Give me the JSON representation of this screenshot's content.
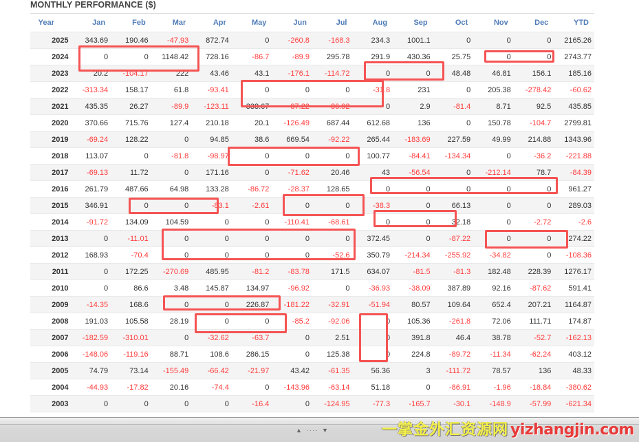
{
  "header": {
    "title": "MONTHLY PERFORMANCE ($)"
  },
  "columns": [
    "Year",
    "Jan",
    "Feb",
    "Mar",
    "Apr",
    "May",
    "Jun",
    "Jul",
    "Aug",
    "Sep",
    "Oct",
    "Nov",
    "Dec",
    "YTD"
  ],
  "rows": [
    {
      "year": "2025",
      "values": [
        "343.69",
        "190.46",
        "-47.93",
        "872.74",
        "0",
        "-260.8",
        "-168.3",
        "234.3",
        "1001.1",
        "0",
        "0",
        "0",
        "2165.26"
      ]
    },
    {
      "year": "2024",
      "values": [
        "0",
        "0",
        "1148.42",
        "728.16",
        "-86.7",
        "-89.9",
        "295.78",
        "291.9",
        "430.36",
        "25.75",
        "0",
        "0",
        "2743.77"
      ]
    },
    {
      "year": "2023",
      "values": [
        "20.2",
        "-104.17",
        "222",
        "43.46",
        "43.1",
        "-176.1",
        "-114.72",
        "0",
        "0",
        "48.48",
        "46.81",
        "156.1",
        "185.16"
      ]
    },
    {
      "year": "2022",
      "values": [
        "-313.34",
        "158.17",
        "61.8",
        "-93.41",
        "0",
        "0",
        "0",
        "-31.8",
        "231",
        "0",
        "205.38",
        "-278.42",
        "-60.62"
      ]
    },
    {
      "year": "2021",
      "values": [
        "435.35",
        "26.27",
        "-89.9",
        "-123.11",
        "338.67",
        "-87.22",
        "-86.92",
        "0",
        "2.9",
        "-81.4",
        "8.71",
        "92.5",
        "435.85"
      ]
    },
    {
      "year": "2020",
      "values": [
        "370.66",
        "715.76",
        "127.4",
        "210.18",
        "20.1",
        "-126.49",
        "687.44",
        "612.68",
        "136",
        "0",
        "150.78",
        "-104.7",
        "2799.81"
      ]
    },
    {
      "year": "2019",
      "values": [
        "-69.24",
        "128.22",
        "0",
        "94.85",
        "38.6",
        "669.54",
        "-92.22",
        "265.44",
        "-183.69",
        "227.59",
        "49.99",
        "214.88",
        "1343.96"
      ]
    },
    {
      "year": "2018",
      "values": [
        "113.07",
        "0",
        "-81.8",
        "-98.97",
        "0",
        "0",
        "0",
        "100.77",
        "-84.41",
        "-134.34",
        "0",
        "-36.2",
        "-221.88"
      ]
    },
    {
      "year": "2017",
      "values": [
        "-69.13",
        "11.72",
        "0",
        "171.16",
        "0",
        "-71.62",
        "20.46",
        "43",
        "-56.54",
        "0",
        "-212.14",
        "78.7",
        "-84.39"
      ]
    },
    {
      "year": "2016",
      "values": [
        "261.79",
        "487.66",
        "64.98",
        "133.28",
        "-86.72",
        "-28.37",
        "128.65",
        "0",
        "0",
        "0",
        "0",
        "0",
        "961.27"
      ]
    },
    {
      "year": "2015",
      "values": [
        "346.91",
        "0",
        "0",
        "-83.1",
        "-2.61",
        "0",
        "0",
        "-38.3",
        "0",
        "66.13",
        "0",
        "0",
        "289.03"
      ]
    },
    {
      "year": "2014",
      "values": [
        "-91.72",
        "134.09",
        "104.59",
        "0",
        "0",
        "-110.41",
        "-68.61",
        "0",
        "0",
        "32.18",
        "0",
        "-2.72",
        "-2.6"
      ]
    },
    {
      "year": "2013",
      "values": [
        "0",
        "-11.01",
        "0",
        "0",
        "0",
        "0",
        "0",
        "372.45",
        "0",
        "-87.22",
        "0",
        "0",
        "274.22"
      ]
    },
    {
      "year": "2012",
      "values": [
        "168.93",
        "-70.4",
        "0",
        "0",
        "0",
        "0",
        "-52.6",
        "350.79",
        "-214.34",
        "-255.92",
        "-34.82",
        "0",
        "-108.36"
      ]
    },
    {
      "year": "2011",
      "values": [
        "0",
        "172.25",
        "-270.69",
        "485.95",
        "-81.2",
        "-83.78",
        "171.5",
        "634.07",
        "-81.5",
        "-81.3",
        "182.48",
        "228.39",
        "1276.17"
      ]
    },
    {
      "year": "2010",
      "values": [
        "0",
        "86.6",
        "3.48",
        "145.87",
        "134.97",
        "-96.92",
        "0",
        "-36.93",
        "-38.09",
        "387.89",
        "92.16",
        "-87.62",
        "591.41"
      ]
    },
    {
      "year": "2009",
      "values": [
        "-14.35",
        "168.6",
        "0",
        "0",
        "226.87",
        "-181.22",
        "-32.91",
        "-51.94",
        "80.57",
        "109.64",
        "652.4",
        "207.21",
        "1164.87"
      ]
    },
    {
      "year": "2008",
      "values": [
        "191.03",
        "105.58",
        "28.19",
        "0",
        "0",
        "-85.2",
        "-92.06",
        "0",
        "105.36",
        "-261.8",
        "72.06",
        "111.71",
        "174.87"
      ]
    },
    {
      "year": "2007",
      "values": [
        "-182.59",
        "-310.01",
        "0",
        "-32.62",
        "-63.7",
        "0",
        "2.51",
        "0",
        "391.8",
        "46.4",
        "38.78",
        "-52.7",
        "-162.13"
      ]
    },
    {
      "year": "2006",
      "values": [
        "-148.06",
        "-119.16",
        "88.71",
        "108.6",
        "286.15",
        "0",
        "125.38",
        "0",
        "224.8",
        "-89.72",
        "-11.34",
        "-62.24",
        "403.12"
      ]
    },
    {
      "year": "2005",
      "values": [
        "74.79",
        "73.14",
        "-155.49",
        "-66.42",
        "-21.97",
        "43.42",
        "-61.35",
        "56.36",
        "3",
        "-111.72",
        "78.57",
        "136",
        "48.33"
      ]
    },
    {
      "year": "2004",
      "values": [
        "-44.93",
        "-17.82",
        "20.16",
        "-74.4",
        "0",
        "-143.96",
        "-63.14",
        "51.18",
        "0",
        "-86.91",
        "-1.96",
        "-18.84",
        "-380.62"
      ]
    },
    {
      "year": "2003",
      "values": [
        "0",
        "0",
        "0",
        "0",
        "-16.4",
        "0",
        "-124.95",
        "-77.3",
        "-165.7",
        "-30.1",
        "-148.9",
        "-57.99",
        "-621.34"
      ]
    }
  ],
  "colors": {
    "negative": "#ff3c3c",
    "positive": "#333333",
    "header": "#4f7cb8",
    "highlight_box": "#f55353"
  },
  "watermark": {
    "cn": "一掌金外汇资源网",
    "url": "yizhangjin.com"
  },
  "splitter": {
    "up_icon": "triangle-up",
    "down_icon": "triangle-down"
  }
}
